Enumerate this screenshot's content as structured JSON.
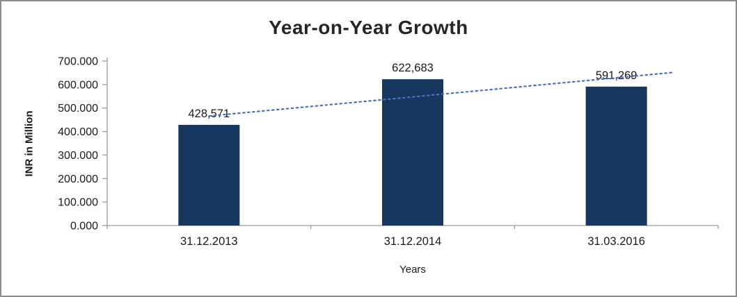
{
  "chart_data": {
    "type": "bar",
    "title": "Year-on-Year Growth",
    "xlabel": "Years",
    "ylabel": "INR in Million",
    "categories": [
      "31.12.2013",
      "31.12.2014",
      "31.03.2016"
    ],
    "values": [
      428.571,
      622.683,
      591.269
    ],
    "value_labels": [
      "428,571",
      "622,683",
      "591,269"
    ],
    "y_ticks": [
      "0.000",
      "100.000",
      "200.000",
      "300.000",
      "400.000",
      "500.000",
      "600.000",
      "700.000"
    ],
    "ylim": [
      0,
      700
    ],
    "grid": false,
    "legend": false,
    "trendline": "linear",
    "colors": {
      "bar": "#17375E",
      "trendline": "#4472C4",
      "axis": "#9c9c9c",
      "text": "#1a1a1a"
    }
  }
}
